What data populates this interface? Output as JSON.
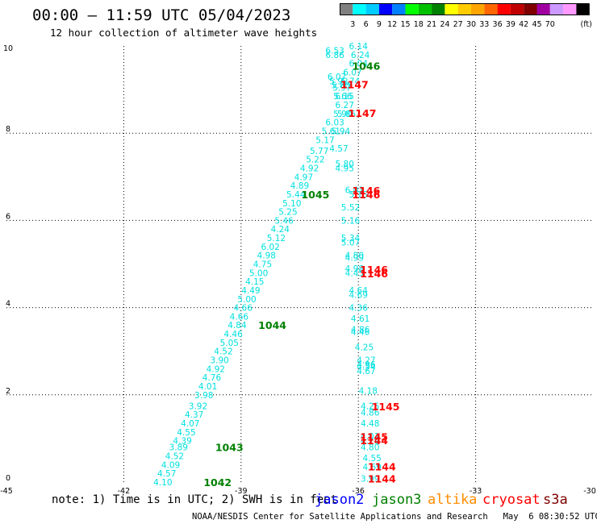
{
  "header": {
    "title": "00:00 – 11:59 UTC 05/04/2023",
    "subtitle": "12 hour collection of altimeter wave heights"
  },
  "color_scale": {
    "colors": [
      "#808080",
      "#00ffff",
      "#00ccff",
      "#0000ff",
      "#0080ff",
      "#00ff00",
      "#00c000",
      "#008000",
      "#ffff00",
      "#ffcc00",
      "#ffa500",
      "#ff6600",
      "#ff0000",
      "#c00000",
      "#800000",
      "#a000a0",
      "#cc99ff",
      "#ff99ff",
      "#000000"
    ],
    "labels": [
      "3",
      "6",
      "9",
      "12",
      "15",
      "18",
      "21",
      "24",
      "27",
      "30",
      "33",
      "36",
      "39",
      "42",
      "45",
      "70",
      "(ft)"
    ]
  },
  "chart_data": {
    "type": "scatter",
    "title": "12 hour collection of altimeter wave heights",
    "xlim": [
      -45,
      -30
    ],
    "ylim": [
      0,
      10
    ],
    "x_ticks": [
      "-45",
      "-42",
      "-39",
      "-36",
      "-33",
      "-30"
    ],
    "y_ticks": [
      "0",
      "2",
      "4",
      "6",
      "8",
      "10"
    ],
    "grid": true,
    "track_labels": [
      {
        "x": -35.8,
        "y": 9.55,
        "text": "1046",
        "color": "#008000"
      },
      {
        "x": -36.1,
        "y": 9.12,
        "text": "1147",
        "color": "#ff0000"
      },
      {
        "x": -35.9,
        "y": 8.47,
        "text": "1147",
        "color": "#ff0000"
      },
      {
        "x": -35.8,
        "y": 6.69,
        "text": "1146",
        "color": "#ff0000"
      },
      {
        "x": -35.8,
        "y": 6.6,
        "text": "1146",
        "color": "#ff0000"
      },
      {
        "x": -37.1,
        "y": 6.6,
        "text": "1045",
        "color": "#008000"
      },
      {
        "x": -35.6,
        "y": 4.88,
        "text": "1146",
        "color": "#ff0000"
      },
      {
        "x": -35.6,
        "y": 4.79,
        "text": "1146",
        "color": "#ff0000"
      },
      {
        "x": -38.2,
        "y": 3.6,
        "text": "1044",
        "color": "#008000"
      },
      {
        "x": -35.3,
        "y": 1.74,
        "text": "1145",
        "color": "#ff0000"
      },
      {
        "x": -35.6,
        "y": 1.04,
        "text": "1145",
        "color": "#ff0000"
      },
      {
        "x": -35.6,
        "y": 0.96,
        "text": "1144",
        "color": "#ff0000"
      },
      {
        "x": -39.3,
        "y": 0.8,
        "text": "1043",
        "color": "#008000"
      },
      {
        "x": -35.4,
        "y": 0.36,
        "text": "1144",
        "color": "#ff0000"
      },
      {
        "x": -35.4,
        "y": 0.08,
        "text": "1144",
        "color": "#ff0000"
      },
      {
        "x": -39.6,
        "y": 0.0,
        "text": "1042",
        "color": "#008000"
      }
    ],
    "series": [
      {
        "color": "#00e0e0",
        "points": [
          {
            "x": -36.6,
            "y": 9.9,
            "v": "6.53"
          },
          {
            "x": -36.6,
            "y": 9.8,
            "v": "6.86"
          },
          {
            "x": -36.55,
            "y": 9.3,
            "v": "6.07"
          },
          {
            "x": -36.5,
            "y": 9.2,
            "v": "5.92"
          },
          {
            "x": -36.45,
            "y": 9.1,
            "v": "5.80"
          },
          {
            "x": -36.42,
            "y": 9.05,
            "v": "5.97"
          },
          {
            "x": -36.4,
            "y": 8.85,
            "v": "5.66"
          },
          {
            "x": -36.35,
            "y": 8.65,
            "v": "6.27"
          },
          {
            "x": -36.3,
            "y": 8.45,
            "v": "5.85"
          },
          {
            "x": -36.6,
            "y": 8.25,
            "v": "6.03"
          },
          {
            "x": -36.7,
            "y": 8.05,
            "v": "5.61"
          },
          {
            "x": -36.85,
            "y": 7.85,
            "v": "5.17"
          },
          {
            "x": -37.0,
            "y": 7.6,
            "v": "5.77"
          },
          {
            "x": -37.1,
            "y": 7.4,
            "v": "5.22"
          },
          {
            "x": -37.25,
            "y": 7.2,
            "v": "4.92"
          },
          {
            "x": -37.4,
            "y": 7.0,
            "v": "4.97"
          },
          {
            "x": -37.5,
            "y": 6.8,
            "v": "4.89"
          },
          {
            "x": -37.6,
            "y": 6.6,
            "v": "5.44"
          },
          {
            "x": -37.7,
            "y": 6.4,
            "v": "5.10"
          },
          {
            "x": -37.8,
            "y": 6.2,
            "v": "5.25"
          },
          {
            "x": -37.9,
            "y": 6.0,
            "v": "5.46"
          },
          {
            "x": -38.0,
            "y": 5.8,
            "v": "4.24"
          },
          {
            "x": -38.1,
            "y": 5.6,
            "v": "5.12"
          },
          {
            "x": -38.25,
            "y": 5.4,
            "v": "6.02"
          },
          {
            "x": -38.35,
            "y": 5.2,
            "v": "4.98"
          },
          {
            "x": -38.45,
            "y": 5.0,
            "v": "4.75"
          },
          {
            "x": -38.55,
            "y": 4.8,
            "v": "5.00"
          },
          {
            "x": -38.65,
            "y": 4.6,
            "v": "4.15"
          },
          {
            "x": -38.75,
            "y": 4.4,
            "v": "4.49"
          },
          {
            "x": -38.85,
            "y": 4.2,
            "v": "5.00"
          },
          {
            "x": -38.95,
            "y": 4.0,
            "v": "4.66"
          },
          {
            "x": -39.05,
            "y": 3.8,
            "v": "4.66"
          },
          {
            "x": -39.1,
            "y": 3.6,
            "v": "4.84"
          },
          {
            "x": -39.2,
            "y": 3.4,
            "v": "4.46"
          },
          {
            "x": -39.3,
            "y": 3.2,
            "v": "5.05"
          },
          {
            "x": -39.45,
            "y": 3.0,
            "v": "4.52"
          },
          {
            "x": -39.55,
            "y": 2.8,
            "v": "3.90"
          },
          {
            "x": -39.65,
            "y": 2.6,
            "v": "4.92"
          },
          {
            "x": -39.75,
            "y": 2.4,
            "v": "4.76"
          },
          {
            "x": -39.85,
            "y": 2.2,
            "v": "4.01"
          },
          {
            "x": -39.95,
            "y": 2.0,
            "v": "3.98"
          },
          {
            "x": -40.1,
            "y": 1.75,
            "v": "3.92"
          },
          {
            "x": -40.2,
            "y": 1.55,
            "v": "4.37"
          },
          {
            "x": -40.3,
            "y": 1.35,
            "v": "4.07"
          },
          {
            "x": -40.4,
            "y": 1.15,
            "v": "4.55"
          },
          {
            "x": -40.5,
            "y": 0.95,
            "v": "4.39"
          },
          {
            "x": -40.6,
            "y": 0.8,
            "v": "3.89"
          },
          {
            "x": -40.7,
            "y": 0.6,
            "v": "4.52"
          },
          {
            "x": -40.8,
            "y": 0.4,
            "v": "4.09"
          },
          {
            "x": -40.9,
            "y": 0.2,
            "v": "4.57"
          },
          {
            "x": -41.0,
            "y": 0.0,
            "v": "4.10"
          }
        ]
      },
      {
        "color": "#00e0e0",
        "points": [
          {
            "x": -36.0,
            "y": 10.0,
            "v": "6.14"
          },
          {
            "x": -35.95,
            "y": 9.8,
            "v": "6.24"
          },
          {
            "x": -36.0,
            "y": 9.6,
            "v": "6.04"
          },
          {
            "x": -36.15,
            "y": 9.4,
            "v": "6.07"
          },
          {
            "x": -36.2,
            "y": 9.2,
            "v": "5.74"
          },
          {
            "x": -36.35,
            "y": 8.85,
            "v": "6.15"
          },
          {
            "x": -36.4,
            "y": 8.45,
            "v": "5.90"
          },
          {
            "x": -36.45,
            "y": 8.05,
            "v": "5.94"
          },
          {
            "x": -36.5,
            "y": 7.65,
            "v": "4.57"
          },
          {
            "x": -36.35,
            "y": 7.3,
            "v": "5.80"
          },
          {
            "x": -36.35,
            "y": 7.2,
            "v": "4.95"
          },
          {
            "x": -36.1,
            "y": 6.7,
            "v": "6.01"
          },
          {
            "x": -36.0,
            "y": 6.6,
            "v": "5.15"
          },
          {
            "x": -36.2,
            "y": 6.3,
            "v": "5.52"
          },
          {
            "x": -36.2,
            "y": 6.0,
            "v": "5.16"
          },
          {
            "x": -36.2,
            "y": 5.6,
            "v": "5.34"
          },
          {
            "x": -36.2,
            "y": 5.5,
            "v": "5.07"
          },
          {
            "x": -36.1,
            "y": 5.2,
            "v": "4.80"
          },
          {
            "x": -36.1,
            "y": 5.15,
            "v": "4.99"
          },
          {
            "x": -36.1,
            "y": 4.9,
            "v": "4.98"
          },
          {
            "x": -36.1,
            "y": 4.8,
            "v": "4.45"
          },
          {
            "x": -36.0,
            "y": 4.4,
            "v": "4.64"
          },
          {
            "x": -36.0,
            "y": 4.3,
            "v": "4.69"
          },
          {
            "x": -36.0,
            "y": 4.0,
            "v": "4.36"
          },
          {
            "x": -35.95,
            "y": 3.75,
            "v": "4.61"
          },
          {
            "x": -35.95,
            "y": 3.5,
            "v": "4.86"
          },
          {
            "x": -35.95,
            "y": 3.45,
            "v": "4.46"
          },
          {
            "x": -35.85,
            "y": 3.1,
            "v": "4.25"
          },
          {
            "x": -35.8,
            "y": 2.8,
            "v": "4.27"
          },
          {
            "x": -35.8,
            "y": 2.7,
            "v": "4.96"
          },
          {
            "x": -35.8,
            "y": 2.65,
            "v": "4.54"
          },
          {
            "x": -35.8,
            "y": 2.55,
            "v": "4.67"
          },
          {
            "x": -35.75,
            "y": 2.1,
            "v": "4.18"
          },
          {
            "x": -35.7,
            "y": 1.75,
            "v": "4.25"
          },
          {
            "x": -35.7,
            "y": 1.6,
            "v": "4.86"
          },
          {
            "x": -35.7,
            "y": 1.35,
            "v": "4.48"
          },
          {
            "x": -35.7,
            "y": 1.05,
            "v": "4.01"
          },
          {
            "x": -35.7,
            "y": 0.95,
            "v": "4.79"
          },
          {
            "x": -35.7,
            "y": 0.8,
            "v": "4.80"
          },
          {
            "x": -35.65,
            "y": 0.55,
            "v": "4.55"
          },
          {
            "x": -35.65,
            "y": 0.35,
            "v": "4.69"
          },
          {
            "x": -35.7,
            "y": 0.08,
            "v": "3.99"
          }
        ]
      }
    ]
  },
  "footer": {
    "note": "note: 1) Time is in UTC; 2) SWH is in feet",
    "satellites": [
      {
        "name": "jason2",
        "color": "#0000ff"
      },
      {
        "name": "jason3",
        "color": "#008000"
      },
      {
        "name": "altika",
        "color": "#ff8c00"
      },
      {
        "name": "cryosat",
        "color": "#ff0000"
      },
      {
        "name": "s3a",
        "color": "#800000"
      }
    ],
    "credit": "NOAA/NESDIS Center for Satellite Applications and Research   May  6 08:30:52 UTC 2023"
  }
}
